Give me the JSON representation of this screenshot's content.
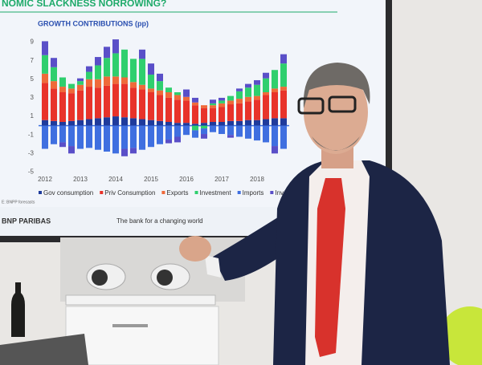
{
  "screen": {
    "title": "NOMIC SLACKNESS NORROWING?",
    "source": "E: BNPP forecasts",
    "brand": "BNP PARIBAS",
    "tagline": "The bank for a changing world"
  },
  "chart_data": {
    "type": "stacked-bar",
    "title": "GROWTH CONTRIBUTIONS (pp)",
    "categories": [
      "2012",
      null,
      null,
      null,
      "2013",
      null,
      null,
      null,
      "2014",
      null,
      null,
      null,
      "2015",
      null,
      null,
      null,
      "2016",
      null,
      null,
      null,
      "2017",
      null,
      null,
      null,
      "2018",
      null,
      null,
      null
    ],
    "series": [
      {
        "name": "Gov consumption",
        "color": "#1f3b9c",
        "values": [
          0.6,
          0.5,
          0.4,
          0.5,
          0.6,
          0.7,
          0.8,
          0.9,
          1.0,
          0.9,
          0.8,
          0.7,
          0.6,
          0.5,
          0.4,
          0.3,
          0.3,
          0.2,
          0.3,
          0.4,
          0.4,
          0.5,
          0.5,
          0.6,
          0.6,
          0.7,
          0.8,
          0.8
        ]
      },
      {
        "name": "Priv Consumption",
        "color": "#e8332a",
        "values": [
          4,
          3.5,
          3.2,
          3,
          3.2,
          3.5,
          3.3,
          3.4,
          3.5,
          3.6,
          3.3,
          3.2,
          3,
          2.8,
          2.6,
          2.5,
          2.4,
          2,
          1.6,
          1.5,
          1.6,
          1.8,
          1.9,
          2,
          2.2,
          2.6,
          2.8,
          3
        ]
      },
      {
        "name": "Exports",
        "color": "#ef6a3a",
        "values": [
          1,
          0.8,
          0.6,
          0.5,
          0.6,
          0.8,
          0.9,
          1.0,
          0.8,
          0.7,
          0.6,
          0.5,
          0.4,
          0.5,
          0.6,
          0.5,
          0.4,
          0.3,
          0.3,
          0.3,
          0.4,
          0.4,
          0.5,
          0.5,
          0.4,
          0.3,
          0.4,
          0.4
        ]
      },
      {
        "name": "Investment",
        "color": "#2fcf6e",
        "values": [
          2,
          1.5,
          1,
          0.5,
          0.4,
          0.8,
          1.5,
          2,
          2.5,
          3,
          2.5,
          2.8,
          1.5,
          1.0,
          0.5,
          0.3,
          0,
          -0.5,
          -0.3,
          0.2,
          0.3,
          0.5,
          0.8,
          1,
          1.2,
          1.5,
          2,
          2.5
        ]
      },
      {
        "name": "Imports",
        "color": "#3f6fe0",
        "values": [
          -2.5,
          -2,
          -1.8,
          -2.2,
          -2.5,
          -2.4,
          -2.6,
          -2.8,
          -3,
          -2.5,
          -2.4,
          -2.6,
          -2.3,
          -2,
          -1.5,
          -1.2,
          -1,
          -0.8,
          -0.6,
          -0.7,
          -0.9,
          -1,
          -1.2,
          -1.4,
          -1.6,
          -1.8,
          -2.2,
          -2.5
        ]
      },
      {
        "name": "Inv/EA",
        "color": "#5a4fc8",
        "values": [
          1.5,
          1,
          -0.5,
          -0.8,
          0.3,
          0.6,
          0.9,
          1.2,
          1.5,
          -0.8,
          -0.6,
          1,
          1.2,
          0.8,
          -0.4,
          -0.6,
          0.8,
          0.5,
          -0.5,
          0.4,
          0.3,
          -0.3,
          0.3,
          0.4,
          0.5,
          0.6,
          -0.8,
          1
        ]
      }
    ],
    "ylim": [
      -6,
      10
    ],
    "yticks": [
      9,
      7,
      5,
      3,
      1,
      -1,
      -3,
      -5
    ]
  }
}
